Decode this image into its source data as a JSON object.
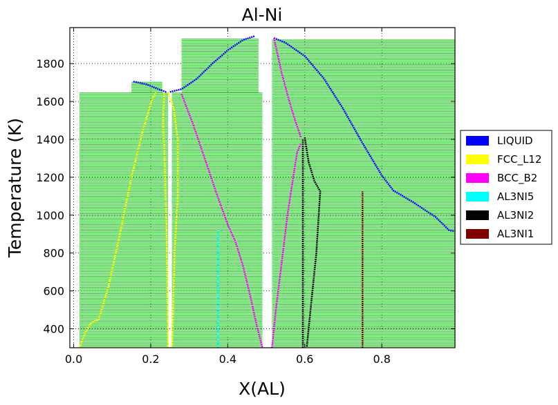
{
  "chart_data": {
    "type": "line",
    "title": "Al-Ni",
    "xlabel": "X(AL)",
    "ylabel": "Temperature (K)",
    "xlim": [
      -0.01,
      0.99
    ],
    "ylim": [
      300,
      1990
    ],
    "xticks": [
      0.0,
      0.2,
      0.4,
      0.6,
      0.8
    ],
    "xtick_labels": [
      "0.0",
      "0.2",
      "0.4",
      "0.6",
      "0.8"
    ],
    "yticks": [
      400,
      600,
      800,
      1000,
      1200,
      1400,
      1600,
      1800
    ],
    "ytick_labels": [
      "400",
      "600",
      "800",
      "1000",
      "1200",
      "1400",
      "1600",
      "1800"
    ],
    "grid": true,
    "legend_position": "right-outside",
    "tie_line_color": "#22cc22",
    "tie_lines": [
      {
        "x1": 0.015,
        "x2": 0.245,
        "y_min": 300,
        "y_max": 1650
      },
      {
        "x1": 0.255,
        "x2": 0.49,
        "y_min": 300,
        "y_max": 1650
      },
      {
        "x1": 0.515,
        "x2": 0.99,
        "y_min": 300,
        "y_max": 1930
      },
      {
        "x1": 0.15,
        "x2": 0.23,
        "y_min": 1650,
        "y_max": 1705
      },
      {
        "x1": 0.28,
        "x2": 0.48,
        "y_min": 1650,
        "y_max": 1935
      }
    ],
    "series": [
      {
        "name": "LIQUID",
        "color": "#0000ff",
        "segments": [
          [
            [
              0.155,
              1705
            ],
            [
              0.19,
              1690
            ],
            [
              0.22,
              1665
            ],
            [
              0.24,
              1650
            ]
          ],
          [
            [
              0.25,
              1650
            ],
            [
              0.28,
              1665
            ],
            [
              0.32,
              1720
            ],
            [
              0.36,
              1800
            ],
            [
              0.4,
              1870
            ],
            [
              0.44,
              1925
            ],
            [
              0.47,
              1945
            ]
          ],
          [
            [
              0.52,
              1935
            ],
            [
              0.55,
              1910
            ],
            [
              0.6,
              1840
            ],
            [
              0.65,
              1720
            ],
            [
              0.7,
              1560
            ],
            [
              0.75,
              1380
            ],
            [
              0.8,
              1210
            ],
            [
              0.83,
              1130
            ],
            [
              0.88,
              1070
            ],
            [
              0.94,
              990
            ],
            [
              0.975,
              920
            ],
            [
              0.99,
              915
            ]
          ]
        ]
      },
      {
        "name": "FCC_L12",
        "color": "#ffff00",
        "segments": [
          [
            [
              0.015,
              300
            ],
            [
              0.03,
              380
            ],
            [
              0.045,
              430
            ],
            [
              0.065,
              450
            ],
            [
              0.09,
              620
            ],
            [
              0.12,
              900
            ],
            [
              0.15,
              1200
            ],
            [
              0.18,
              1450
            ],
            [
              0.205,
              1620
            ],
            [
              0.215,
              1650
            ]
          ],
          [
            [
              0.235,
              1650
            ],
            [
              0.232,
              1500
            ],
            [
              0.236,
              1300
            ],
            [
              0.24,
              1000
            ],
            [
              0.243,
              700
            ],
            [
              0.245,
              300
            ]
          ],
          [
            [
              0.245,
              1650
            ],
            [
              0.26,
              1560
            ],
            [
              0.27,
              1400
            ],
            [
              0.27,
              1100
            ],
            [
              0.262,
              800
            ],
            [
              0.258,
              500
            ],
            [
              0.255,
              300
            ]
          ]
        ]
      },
      {
        "name": "BCC_B2",
        "color": "#ff00ff",
        "segments": [
          [
            [
              0.28,
              1640
            ],
            [
              0.31,
              1480
            ],
            [
              0.34,
              1300
            ],
            [
              0.37,
              1120
            ],
            [
              0.4,
              950
            ],
            [
              0.42,
              860
            ],
            [
              0.44,
              730
            ],
            [
              0.46,
              560
            ],
            [
              0.475,
              420
            ],
            [
              0.49,
              300
            ]
          ],
          [
            [
              0.515,
              300
            ],
            [
              0.525,
              500
            ],
            [
              0.54,
              750
            ],
            [
              0.555,
              1000
            ],
            [
              0.57,
              1200
            ],
            [
              0.58,
              1330
            ],
            [
              0.59,
              1380
            ]
          ],
          [
            [
              0.52,
              1935
            ],
            [
              0.54,
              1750
            ],
            [
              0.56,
              1600
            ],
            [
              0.575,
              1500
            ],
            [
              0.59,
              1410
            ]
          ]
        ]
      },
      {
        "name": "AL3NI5",
        "color": "#00ffff",
        "segments": [
          [
            [
              0.375,
              300
            ],
            [
              0.375,
              920
            ]
          ]
        ]
      },
      {
        "name": "AL3NI2",
        "color": "#000000",
        "segments": [
          [
            [
              0.595,
              300
            ],
            [
              0.595,
              1400
            ]
          ],
          [
            [
              0.6,
              1410
            ],
            [
              0.61,
              1280
            ],
            [
              0.625,
              1180
            ],
            [
              0.64,
              1125
            ],
            [
              0.63,
              800
            ],
            [
              0.615,
              500
            ],
            [
              0.605,
              300
            ]
          ]
        ]
      },
      {
        "name": "AL3NI1",
        "color": "#800000",
        "segments": [
          [
            [
              0.75,
              300
            ],
            [
              0.75,
              1125
            ]
          ]
        ]
      }
    ]
  }
}
